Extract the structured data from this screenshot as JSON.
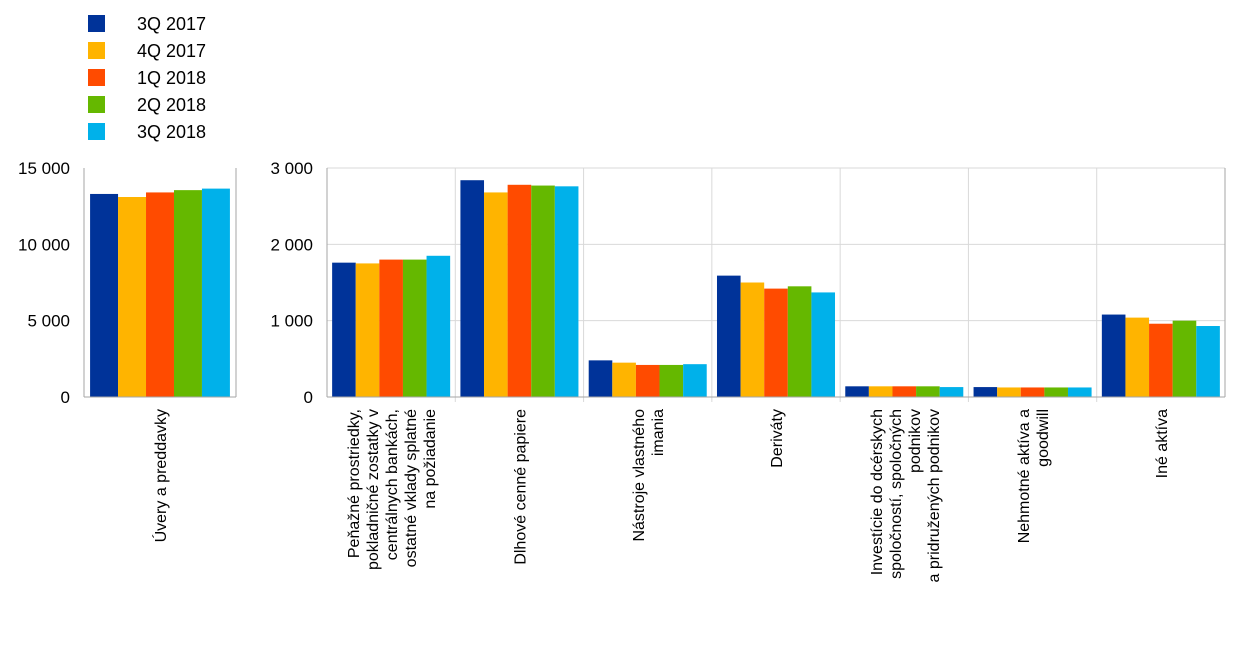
{
  "chart_data": [
    {
      "type": "bar",
      "categories": [
        "Úvery a preddavky"
      ],
      "series": [
        {
          "name": "3Q 2017",
          "values": [
            13300
          ]
        },
        {
          "name": "4Q 2017",
          "values": [
            13100
          ]
        },
        {
          "name": "1Q 2018",
          "values": [
            13400
          ]
        },
        {
          "name": "2Q 2018",
          "values": [
            13550
          ]
        },
        {
          "name": "3Q 2018",
          "values": [
            13650
          ]
        }
      ],
      "ylim": [
        0,
        15000
      ],
      "yticks": [
        "0",
        "5 000",
        "10 000",
        "15 000"
      ],
      "ytick_values": [
        0,
        5000,
        10000,
        15000
      ],
      "grid": false
    },
    {
      "type": "bar",
      "categories": [
        "Peňažné prostriedky, pokladničné zostatky v centrálnych bankách, ostatné vklady splatné na požiadanie",
        "Dlhové cenné papiere",
        "Nástroje vlastného imania",
        "Deriváty",
        "Investície do dcérskych spoločností, spoločných podnikov a pridružených podnikov",
        "Nehmotné aktíva a goodwill",
        "Iné aktíva"
      ],
      "series": [
        {
          "name": "3Q 2017",
          "values": [
            1760,
            2840,
            480,
            1590,
            140,
            130,
            1080
          ]
        },
        {
          "name": "4Q 2017",
          "values": [
            1750,
            2680,
            450,
            1500,
            140,
            125,
            1040
          ]
        },
        {
          "name": "1Q 2018",
          "values": [
            1800,
            2780,
            420,
            1420,
            140,
            125,
            960
          ]
        },
        {
          "name": "2Q 2018",
          "values": [
            1800,
            2770,
            420,
            1450,
            140,
            125,
            1000
          ]
        },
        {
          "name": "3Q 2018",
          "values": [
            1850,
            2760,
            430,
            1370,
            130,
            125,
            930
          ]
        }
      ],
      "ylim": [
        0,
        3000
      ],
      "yticks": [
        "0",
        "1 000",
        "2 000",
        "3 000"
      ],
      "ytick_values": [
        0,
        1000,
        2000,
        3000
      ],
      "grid": true
    }
  ],
  "legend": {
    "placement": "top-left",
    "items": [
      {
        "label": "3Q 2017",
        "color": "#003399"
      },
      {
        "label": "4Q 2017",
        "color": "#FFB400"
      },
      {
        "label": "1Q 2018",
        "color": "#FF4B00"
      },
      {
        "label": "2Q 2018",
        "color": "#65B800"
      },
      {
        "label": "3Q 2018",
        "color": "#00B1EA"
      }
    ]
  },
  "category_label_lines": {
    "left": [
      [
        "Úvery a preddavky"
      ]
    ],
    "right": [
      [
        "Peňažné prostriedky,",
        "pokladničné zostatky v",
        "centrálnych bankách,",
        "ostatné vklady splatné",
        "na požiadanie"
      ],
      [
        "Dlhové cenné papiere"
      ],
      [
        "Nástroje vlastného",
        "imania"
      ],
      [
        "Deriváty"
      ],
      [
        "Investície do dcérskych",
        "spoločností, spoločných",
        "podnikov",
        "a pridružených podnikov"
      ],
      [
        "Nehmotné aktíva a",
        "goodwill"
      ],
      [
        "Iné aktíva"
      ]
    ]
  }
}
